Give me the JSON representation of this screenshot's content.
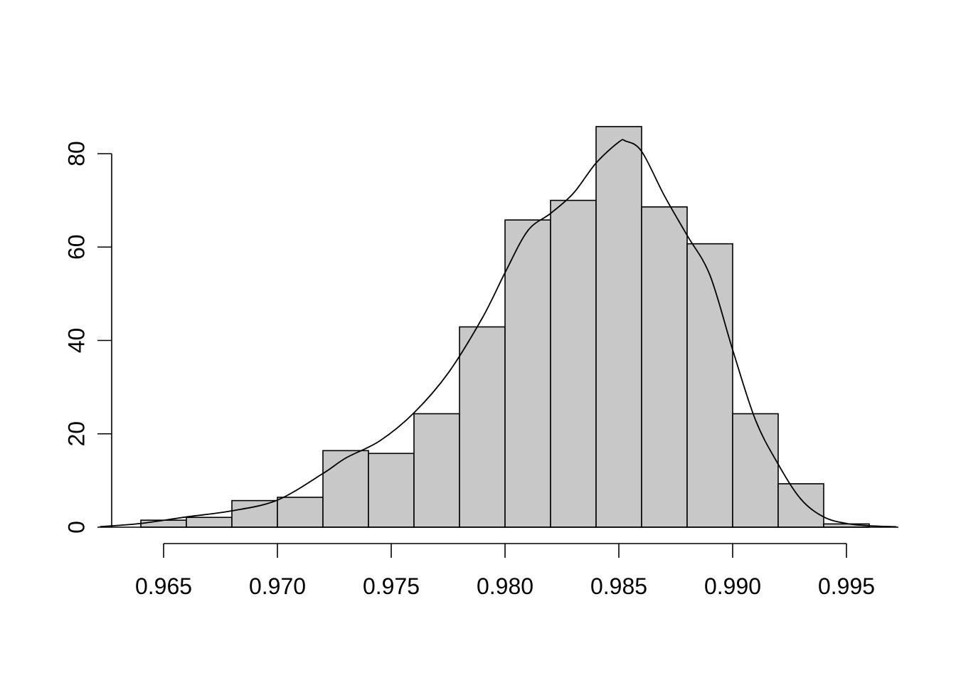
{
  "chart_data": {
    "type": "bar",
    "subtype": "histogram-with-density",
    "title": "",
    "xlabel": "",
    "ylabel": "",
    "bar_color": "#c8c8c8",
    "line_color": "#000000",
    "xlim": [
      0.964,
      0.996
    ],
    "ylim": [
      0,
      80
    ],
    "x_ticks": [
      0.965,
      0.97,
      0.975,
      0.98,
      0.985,
      0.99,
      0.995
    ],
    "x_tick_labels": [
      "0.965",
      "0.970",
      "0.975",
      "0.980",
      "0.985",
      "0.990",
      "0.995"
    ],
    "y_ticks": [
      0,
      20,
      40,
      60,
      80
    ],
    "y_tick_labels": [
      "0",
      "20",
      "40",
      "60",
      "80"
    ],
    "bins": [
      {
        "start": 0.964,
        "end": 0.966,
        "value": 1.5
      },
      {
        "start": 0.966,
        "end": 0.968,
        "value": 2.1
      },
      {
        "start": 0.968,
        "end": 0.97,
        "value": 5.7
      },
      {
        "start": 0.97,
        "end": 0.972,
        "value": 6.4
      },
      {
        "start": 0.972,
        "end": 0.974,
        "value": 16.4
      },
      {
        "start": 0.974,
        "end": 0.976,
        "value": 15.8
      },
      {
        "start": 0.976,
        "end": 0.978,
        "value": 24.3
      },
      {
        "start": 0.978,
        "end": 0.98,
        "value": 42.9
      },
      {
        "start": 0.98,
        "end": 0.982,
        "value": 65.8
      },
      {
        "start": 0.982,
        "end": 0.984,
        "value": 70.0
      },
      {
        "start": 0.984,
        "end": 0.986,
        "value": 85.8
      },
      {
        "start": 0.986,
        "end": 0.988,
        "value": 68.6
      },
      {
        "start": 0.988,
        "end": 0.99,
        "value": 60.7
      },
      {
        "start": 0.99,
        "end": 0.992,
        "value": 24.3
      },
      {
        "start": 0.992,
        "end": 0.994,
        "value": 9.3
      },
      {
        "start": 0.994,
        "end": 0.996,
        "value": 0.7
      }
    ],
    "density_curve": {
      "x": [
        0.9622,
        0.964,
        0.966,
        0.968,
        0.97,
        0.972,
        0.973,
        0.9745,
        0.976,
        0.9775,
        0.979,
        0.98,
        0.981,
        0.982,
        0.983,
        0.984,
        0.985,
        0.9853,
        0.986,
        0.987,
        0.988,
        0.989,
        0.99,
        0.991,
        0.992,
        0.993,
        0.994,
        0.995,
        0.996,
        0.9972
      ],
      "y": [
        0.1,
        0.8,
        2.2,
        3.5,
        5.8,
        11.5,
        14.8,
        18.5,
        24.5,
        33.0,
        44.8,
        54.5,
        63.5,
        67.2,
        71.5,
        78.0,
        82.5,
        82.7,
        80.5,
        71.0,
        62.5,
        54.0,
        38.0,
        23.0,
        13.5,
        6.0,
        2.2,
        0.8,
        0.3,
        0.1
      ]
    }
  }
}
